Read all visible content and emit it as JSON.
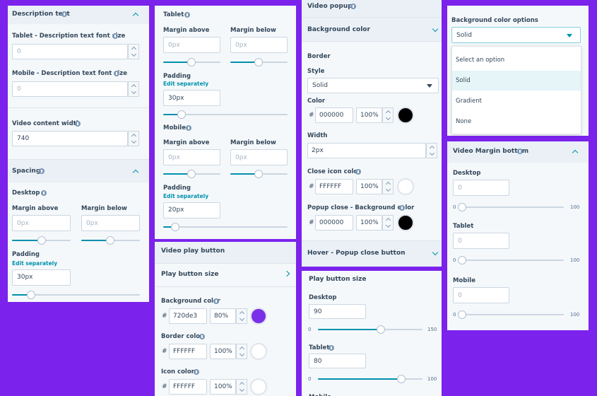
{
  "panels": [
    {
      "title": "Description text",
      "items": [
        "Tablet - Description text font size",
        "0",
        "Mobile - Description text font size",
        "0",
        "Video content width",
        "740",
        "Spacing",
        "Desktop",
        "Margin above",
        "Margin below",
        "0px",
        "0px",
        "Padding",
        "Edit separately",
        "30px"
      ]
    },
    {
      "title": "Tablet",
      "items": [
        "Margin above",
        "Margin below",
        "0px",
        "0px",
        "Padding",
        "Edit separately",
        "30px",
        "Mobile",
        "Margin above",
        "Margin below",
        "0px",
        "0px",
        "Padding",
        "Edit separately",
        "20px"
      ]
    },
    {
      "title": "Video play button",
      "items": [
        "Play button size",
        "Background color",
        "#",
        "720de3",
        "80%",
        "Border color",
        "#",
        "FFFFFF",
        "100%",
        "Icon color",
        "#",
        "FFFFFF",
        "100%"
      ]
    },
    {
      "title": "Video popup",
      "items": [
        "Background color",
        "Border",
        "Style",
        "Solid",
        "Color",
        "#",
        "000000",
        "100%",
        "Width",
        "2px",
        "Close icon color",
        "#",
        "FFFFFF",
        "100%",
        "Popup close - Background color",
        "#",
        "000000",
        "100%",
        "Hover - Popup close button"
      ]
    },
    {
      "title": "Play button size",
      "items": [
        "Desktop",
        "90",
        "0",
        "150",
        "Tablet",
        "80",
        "0",
        "100",
        "Mobile"
      ]
    },
    {
      "title": "Background color options",
      "items": [
        "Solid",
        "Select an option",
        "Solid",
        "Gradient",
        "None"
      ]
    },
    {
      "title": "Video Margin bottom",
      "items": [
        "Desktop",
        "0",
        "0",
        "100",
        "Tablet",
        "0",
        "0",
        "100",
        "Mobile",
        "0",
        "0",
        "100"
      ]
    }
  ]
}
